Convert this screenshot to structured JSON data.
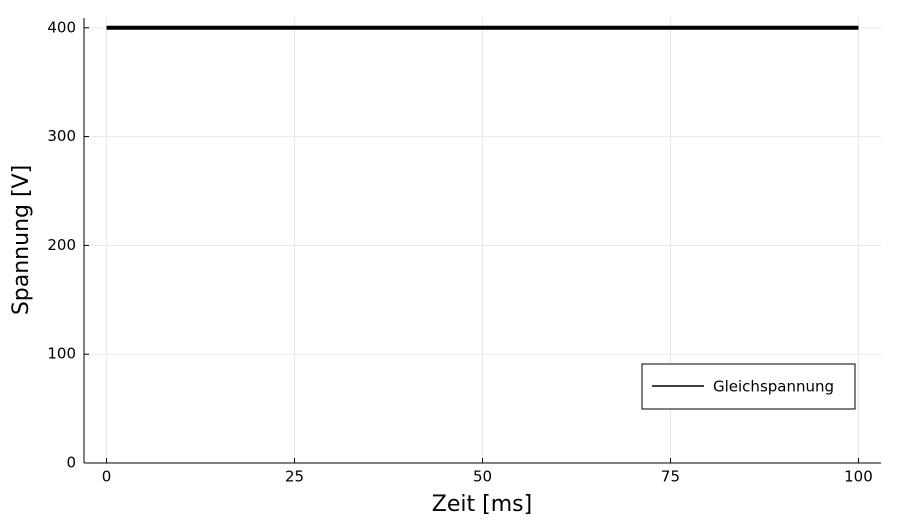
{
  "chart_data": {
    "type": "line",
    "x_label": "Zeit [ms]",
    "y_label": "Spannung [V]",
    "x": [
      0,
      100
    ],
    "series": [
      {
        "name": "Gleichspannung",
        "color": "#000000",
        "values": [
          400,
          400
        ]
      }
    ],
    "xlim": [
      -3,
      103
    ],
    "xticks": [
      0,
      25,
      50,
      75,
      100
    ],
    "ylim": [
      0,
      409
    ],
    "yticks": [
      0,
      100,
      200,
      300,
      400
    ],
    "grid": true,
    "legend": "bottom-right"
  }
}
